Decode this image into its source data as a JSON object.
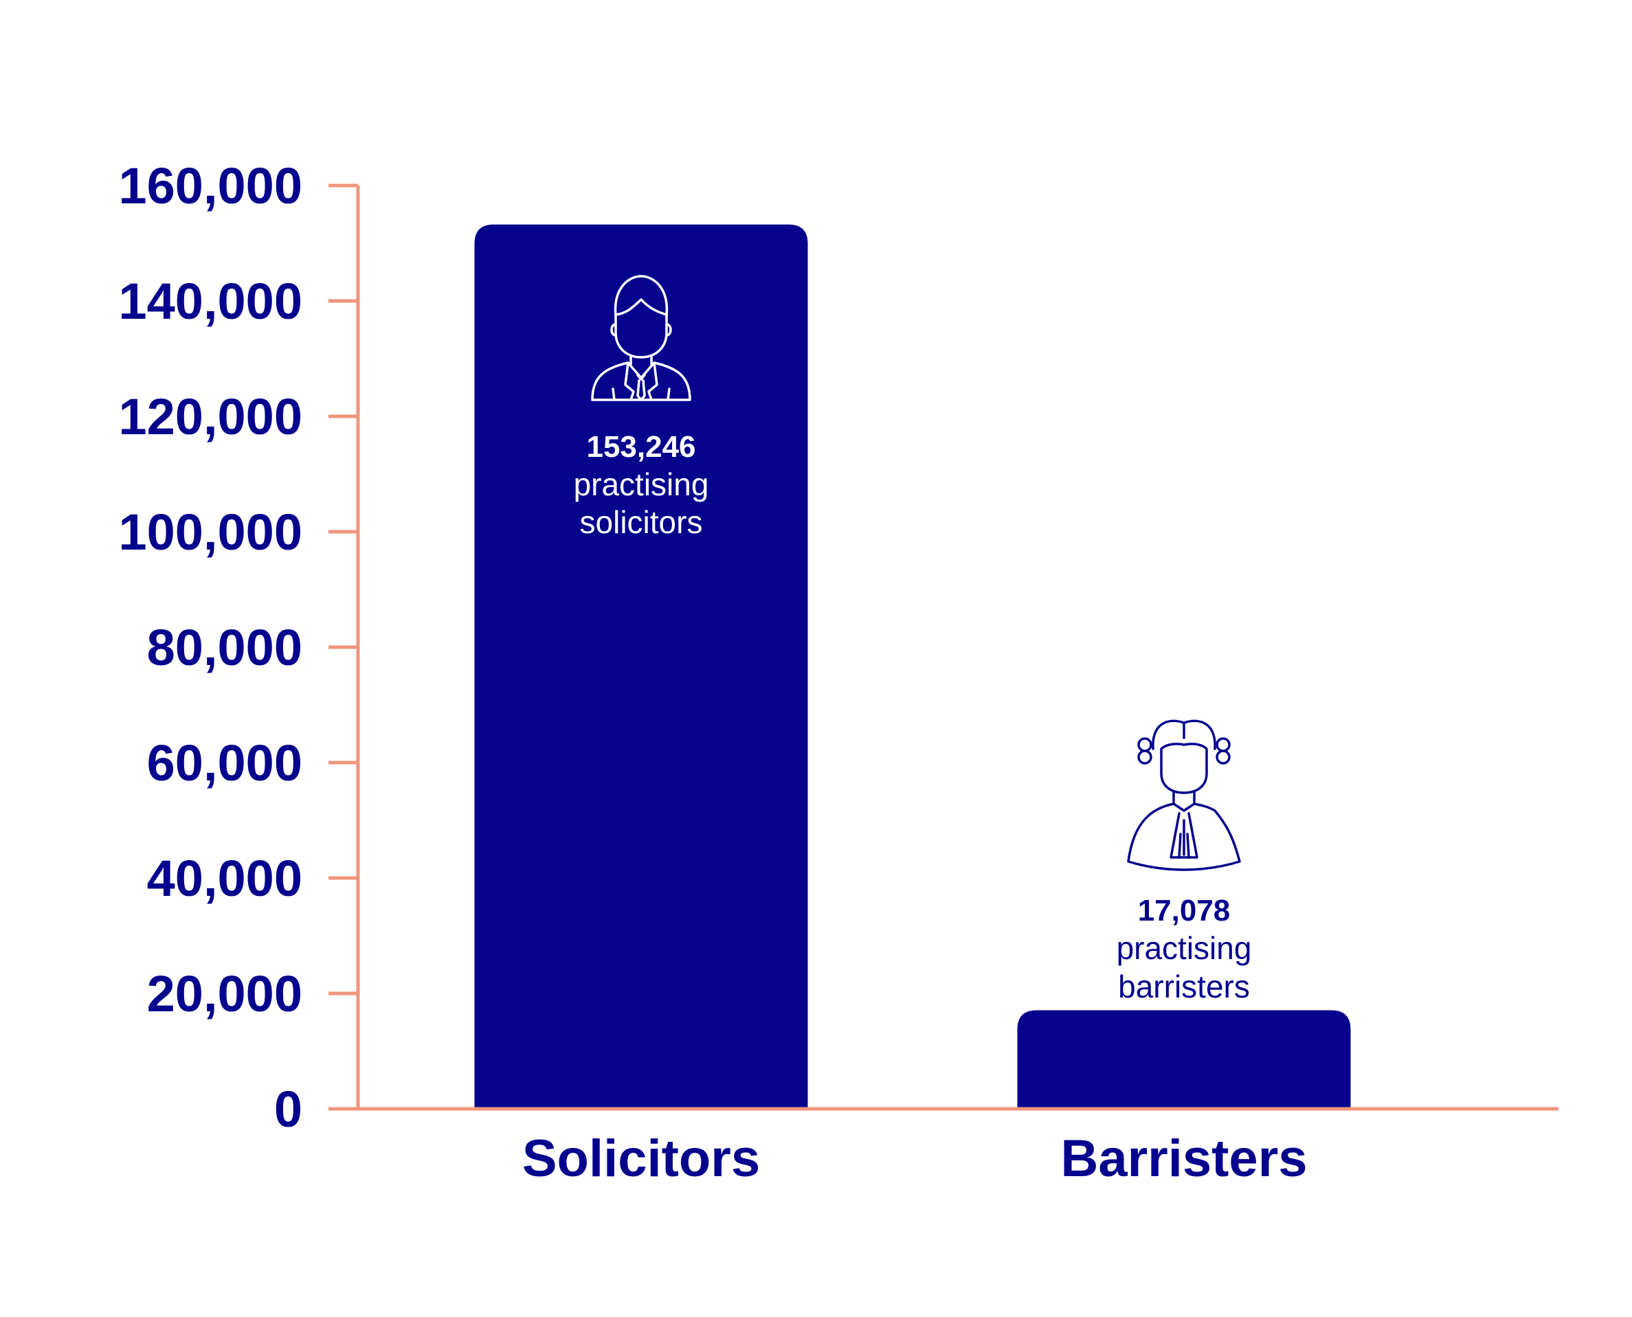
{
  "chart_data": {
    "type": "bar",
    "categories": [
      "Solicitors",
      "Barristers"
    ],
    "values": [
      153246,
      17078
    ],
    "ylim": [
      0,
      160000
    ],
    "yticks": [
      "0",
      "20,000",
      "40,000",
      "60,000",
      "80,000",
      "100,000",
      "120,000",
      "140,000",
      "160,000"
    ],
    "ytick_values": [
      0,
      20000,
      40000,
      60000,
      80000,
      100000,
      120000,
      140000,
      160000
    ],
    "data_labels": [
      {
        "value": "153,246",
        "line1": "practising",
        "line2": "solicitors",
        "icon": "solicitor-icon"
      },
      {
        "value": "17,078",
        "line1": "practising",
        "line2": "barristers",
        "icon": "barrister-wig-icon"
      }
    ],
    "grid": false,
    "legend": "none",
    "colors": {
      "bar": "#06038D",
      "axis": "#F0957A",
      "text": "#06038D",
      "inner_text": "#FFFFFF"
    }
  }
}
